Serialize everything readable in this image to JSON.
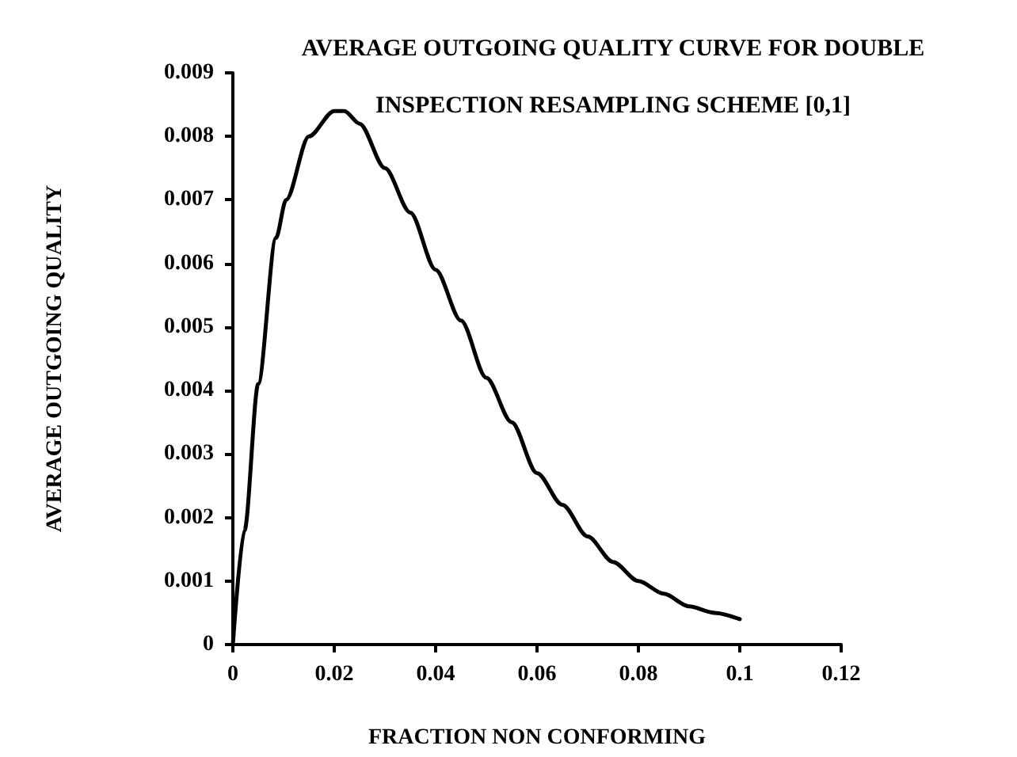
{
  "chart_data": {
    "type": "line",
    "title": "AVERAGE OUTGOING QUALITY CURVE FOR DOUBLE\nINSPECTION RESAMPLING SCHEME [0,1]",
    "xlabel": "FRACTION NON CONFORMING",
    "ylabel": "AVERAGE OUTGOING QUALITY",
    "x": [
      0,
      0.0023,
      0.005,
      0.0085,
      0.0105,
      0.015,
      0.02,
      0.022,
      0.025,
      0.03,
      0.035,
      0.04,
      0.045,
      0.05,
      0.055,
      0.06,
      0.065,
      0.07,
      0.075,
      0.08,
      0.085,
      0.09,
      0.095,
      0.1
    ],
    "series": [
      {
        "color": "#000000",
        "values": [
          0,
          0.0018,
          0.0041,
          0.0064,
          0.007,
          0.008,
          0.0084,
          0.0084,
          0.0082,
          0.0075,
          0.0068,
          0.0059,
          0.0051,
          0.0042,
          0.0035,
          0.0027,
          0.0022,
          0.0017,
          0.0013,
          0.001,
          0.0008,
          0.0006,
          0.0005,
          0.0004
        ]
      }
    ],
    "xlim": [
      0,
      0.12
    ],
    "xticks": [
      0,
      0.02,
      0.04,
      0.06,
      0.08,
      0.1,
      0.12
    ],
    "ylim": [
      0,
      0.009
    ],
    "yticks": [
      0,
      0.001,
      0.002,
      0.003,
      0.004,
      0.005,
      0.006,
      0.007,
      0.008,
      0.009
    ],
    "grid": false,
    "marker": "none",
    "line_style": "solid"
  }
}
